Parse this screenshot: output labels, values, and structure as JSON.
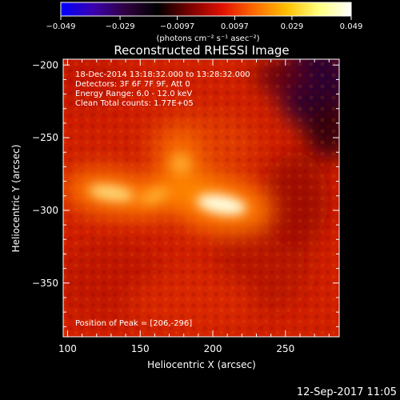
{
  "chart_data": {
    "type": "heatmap",
    "title": "Reconstructed RHESSI Image",
    "xlabel": "Heliocentric X (arcsec)",
    "ylabel": "Heliocentric Y (arcsec)",
    "xlim": [
      97,
      287
    ],
    "ylim": [
      -387,
      -196
    ],
    "x_ticks": [
      100,
      150,
      200,
      250
    ],
    "y_ticks": [
      -200,
      -250,
      -300,
      -350
    ],
    "colorbar": {
      "range": [
        -0.049,
        0.049
      ],
      "ticks": [
        "−0.049",
        "−0.029",
        "−0.0097",
        "0.0097",
        "0.029",
        "0.049"
      ],
      "unit_label": "(photons cm⁻² s⁻¹ asec⁻²)",
      "colormap": [
        "#0000ff",
        "#3a00b0",
        "#300040",
        "#000000",
        "#7a0000",
        "#e01000",
        "#ff6a00",
        "#ffc000",
        "#ffff80",
        "#ffffff"
      ]
    },
    "annotations": [
      "18-Dec-2014 13:18:32.000 to 13:28:32.000",
      "Detectors: 3F 6F 7F 9F, Att 0",
      "Energy Range: 6.0 - 12.0 keV",
      "Clean     Total counts: 1.77E+05"
    ],
    "peak_label": "Position of Peak = [206,-296]",
    "sources": [
      {
        "x": 206,
        "y": -296,
        "intensity": 0.049
      },
      {
        "x": 130,
        "y": -288,
        "intensity": 0.04
      },
      {
        "x": 160,
        "y": -290,
        "intensity": 0.034
      },
      {
        "x": 178,
        "y": -268,
        "intensity": 0.024
      }
    ]
  },
  "footer": {
    "timestamp": "12-Sep-2017 11:05"
  }
}
